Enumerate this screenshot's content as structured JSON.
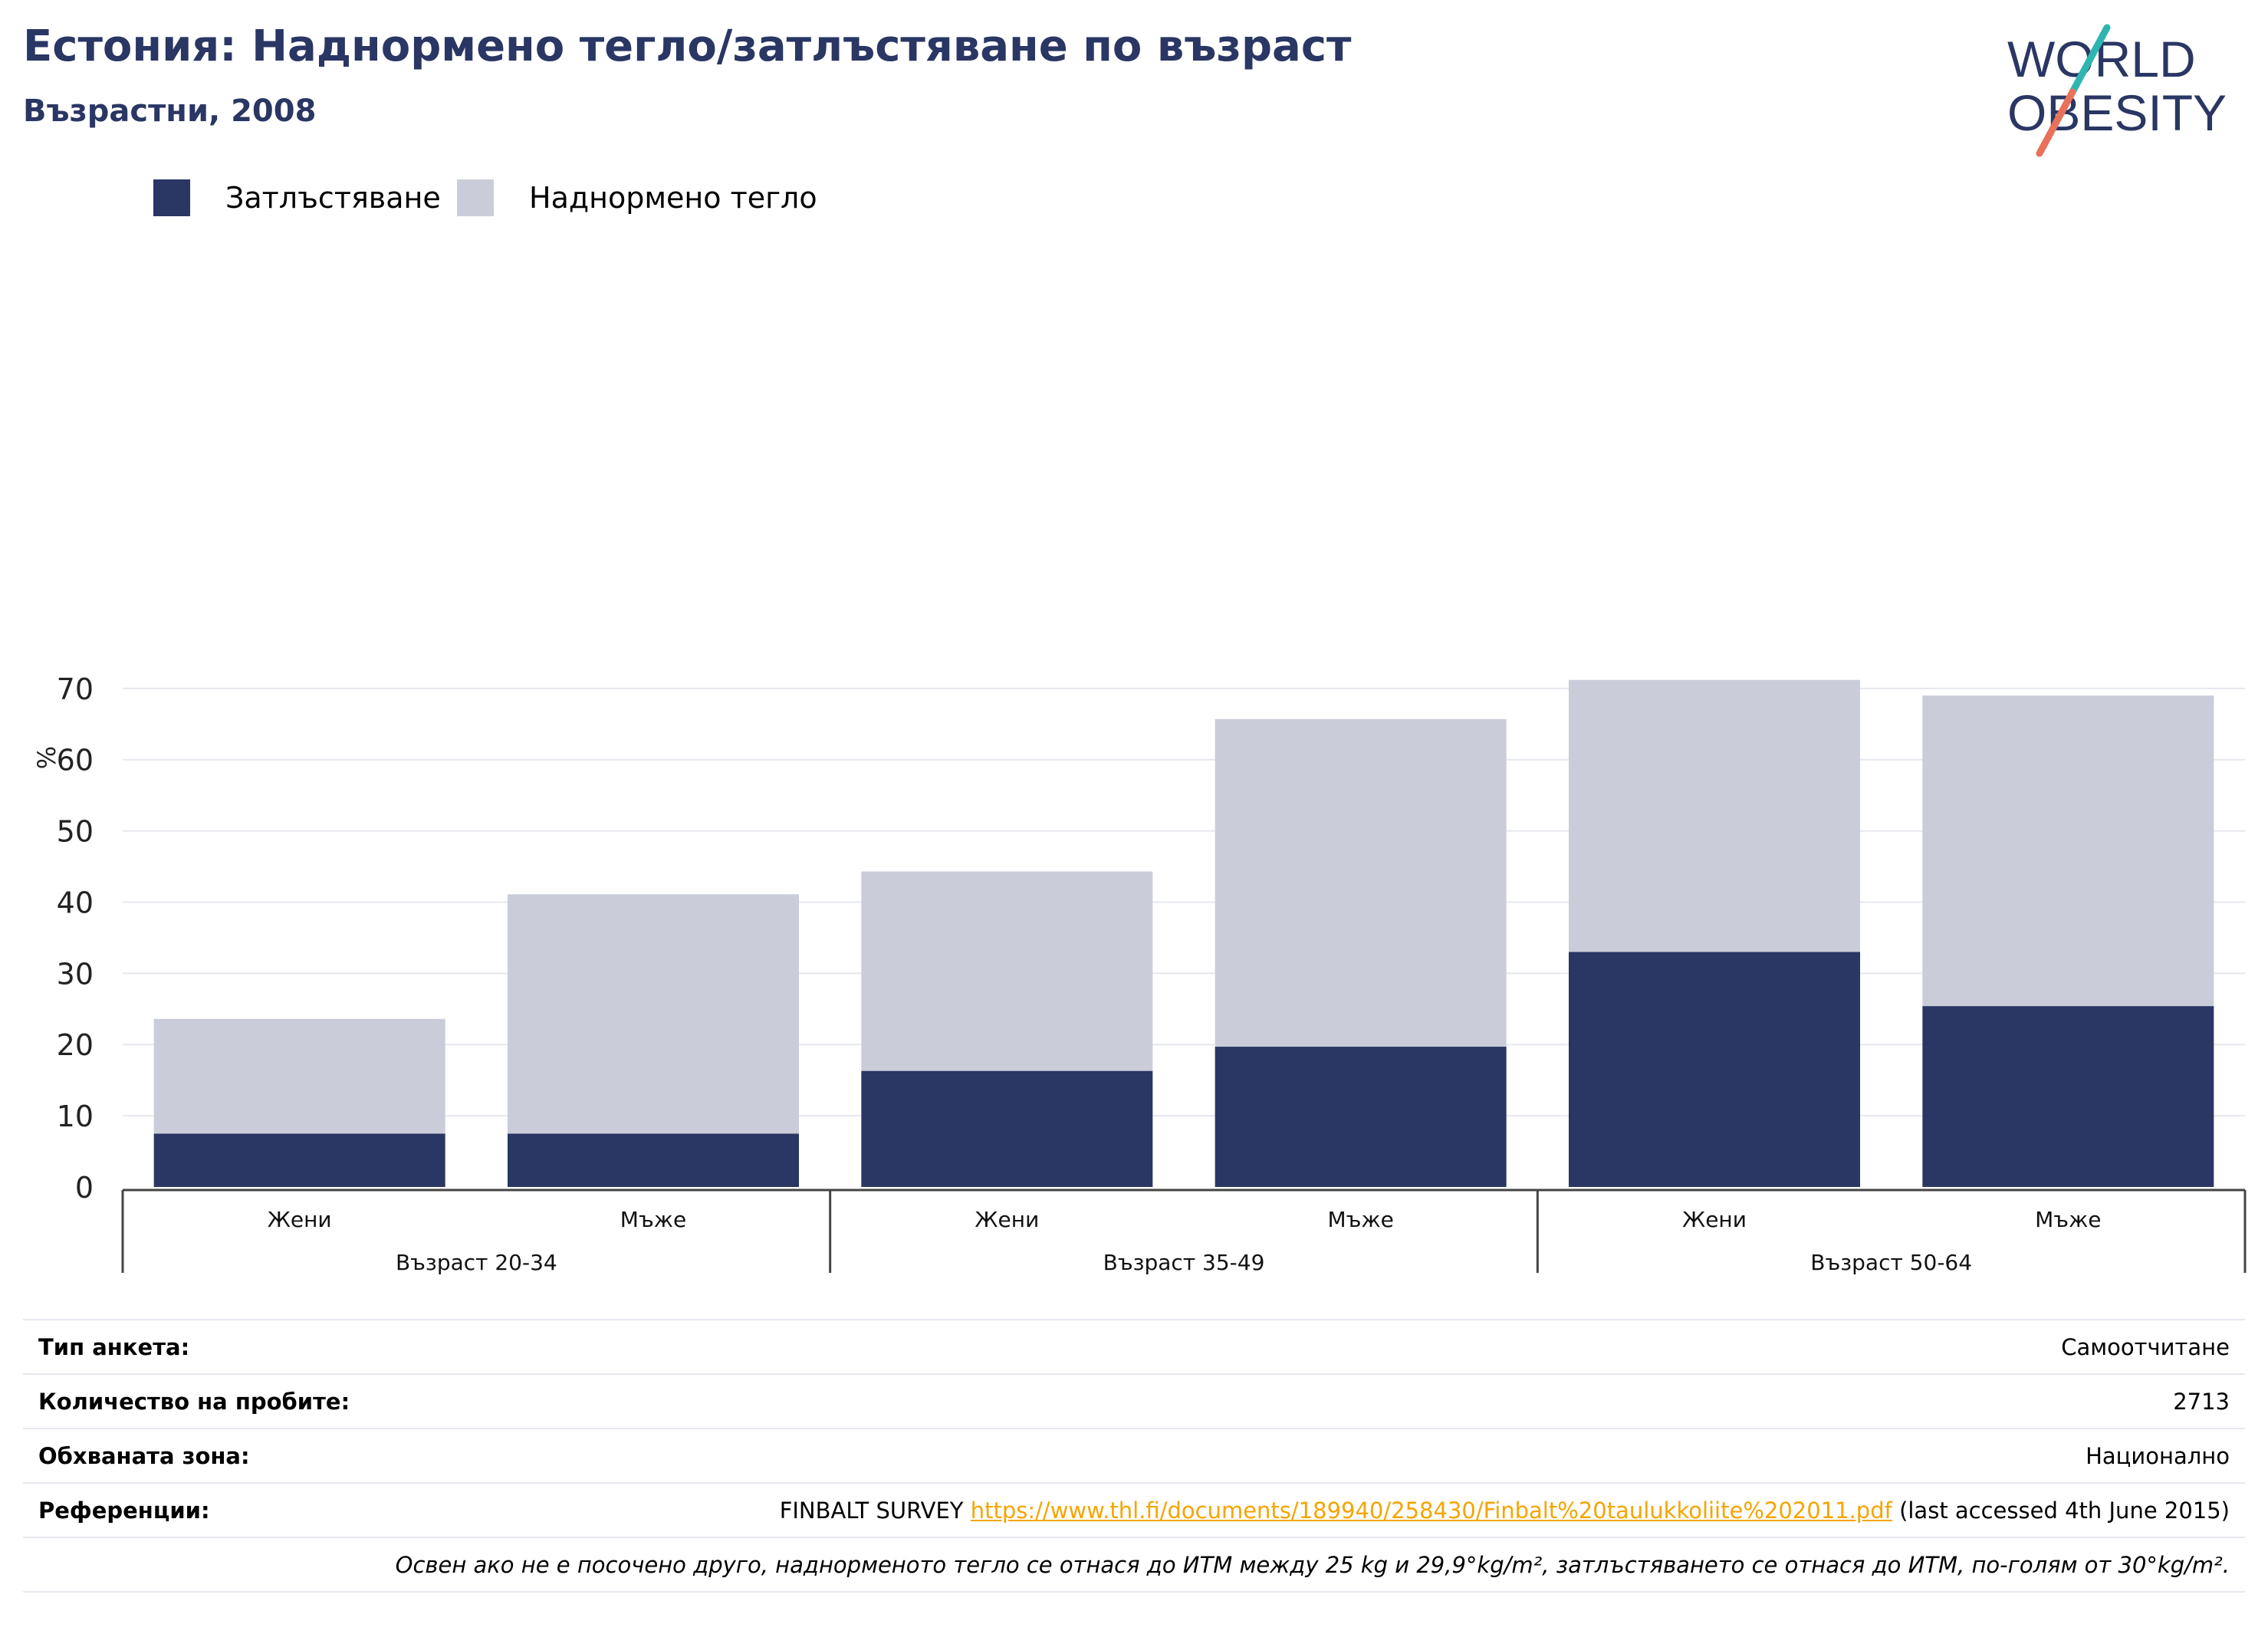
{
  "header": {
    "title": "Естония: Наднормено тегло/затлъстяване по възраст",
    "subtitle": "Възрастни, 2008"
  },
  "logo": {
    "line1": "WORLD",
    "line2": "OBESITY",
    "colors": {
      "text": "#2a3663",
      "teal": "#2fb5b0",
      "coral": "#e8715a"
    }
  },
  "legend": [
    {
      "label": "Затлъстяване",
      "color": "#2a3663"
    },
    {
      "label": "Наднормено тегло",
      "color": "#cacdd9"
    }
  ],
  "chart_data": {
    "type": "bar",
    "stacked": true,
    "ylabel": "%",
    "ylim": [
      0,
      73
    ],
    "yticks": [
      0,
      10,
      20,
      30,
      40,
      50,
      60,
      70
    ],
    "grid": true,
    "legend_position": "top-left",
    "categories": [
      "Жени",
      "Мъже",
      "Жени",
      "Мъже",
      "Жени",
      "Мъже"
    ],
    "groups": [
      {
        "label": "Възраст 20-34",
        "categories": [
          "Жени",
          "Мъже"
        ]
      },
      {
        "label": "Възраст 35-49",
        "categories": [
          "Жени",
          "Мъже"
        ]
      },
      {
        "label": "Възраст 50-64",
        "categories": [
          "Жени",
          "Мъже"
        ]
      }
    ],
    "series": [
      {
        "name": "Затлъстяване",
        "color": "#2a3663",
        "values": [
          7.5,
          7.5,
          16.3,
          19.7,
          33.0,
          25.4
        ]
      },
      {
        "name": "Наднормено тегло",
        "color": "#cacdd9",
        "values": [
          16.1,
          33.6,
          28.0,
          46.0,
          38.2,
          43.6
        ]
      }
    ]
  },
  "info": {
    "survey_type_label": "Тип анкета:",
    "survey_type_value": "Самоотчитане",
    "sample_size_label": "Количество на пробите:",
    "sample_size_value": "2713",
    "area_label": "Обхваната зона:",
    "area_value": "Национално",
    "references_label": "Референции:",
    "references_prefix": "FINBALT SURVEY",
    "references_link": "https://www.thl.fi/documents/189940/258430/Finbalt%20taulukkoliite%202011.pdf",
    "references_suffix": "(last accessed 4th June 2015)",
    "note": "Освен ако не е посочено друго, наднорменото тегло се отнася до ИТМ между 25 kg и 29,9°kg/m², затлъстяването се отнася до ИТМ, по-голям от 30°kg/m²."
  }
}
